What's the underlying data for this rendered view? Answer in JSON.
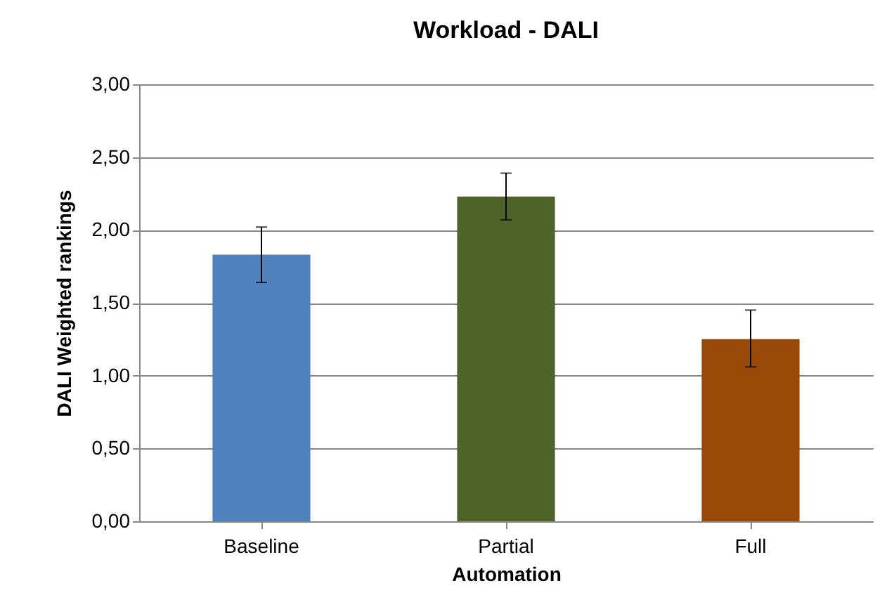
{
  "chart_data": {
    "type": "bar",
    "title": "Workload - DALI",
    "xlabel": "Automation",
    "ylabel": "DALI Weighted rankings",
    "categories": [
      "Baseline",
      "Partial",
      "Full"
    ],
    "values": [
      1.83,
      2.23,
      1.25
    ],
    "colors": [
      "#4f81bd",
      "#4f6228",
      "#984807"
    ],
    "errors": [
      [
        1.64,
        2.02
      ],
      [
        2.07,
        2.39
      ],
      [
        1.06,
        1.45
      ]
    ],
    "ylim": [
      0,
      3
    ],
    "yticks": [
      {
        "value": 0,
        "label": "0,00"
      },
      {
        "value": 0.5,
        "label": "0,50"
      },
      {
        "value": 1,
        "label": "1,00"
      },
      {
        "value": 1.5,
        "label": "1,50"
      },
      {
        "value": 2,
        "label": "2,00"
      },
      {
        "value": 2.5,
        "label": "2,50"
      },
      {
        "value": 3,
        "label": "3,00"
      }
    ],
    "grid": "y"
  }
}
